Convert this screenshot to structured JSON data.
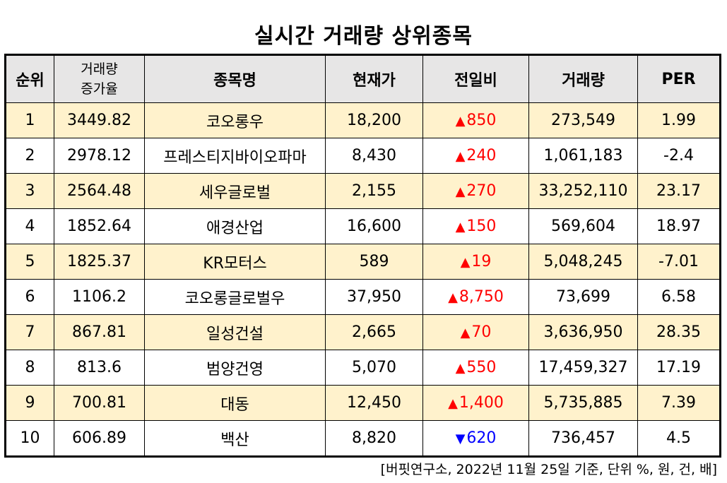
{
  "title": "실시간 거래량 상위종목",
  "headers": {
    "rank": "순위",
    "rate_line1": "거래량",
    "rate_line2": "증가율",
    "name": "종목명",
    "price": "현재가",
    "change": "전일비",
    "volume": "거래량",
    "per": "PER"
  },
  "rows": [
    {
      "rank": "1",
      "rate": "3449.82",
      "name": "코오롱우",
      "price": "18,200",
      "dir": "up",
      "dir_icon": "▲",
      "change": "850",
      "volume": "273,549",
      "per": "1.99"
    },
    {
      "rank": "2",
      "rate": "2978.12",
      "name": "프레스티지바이오파마",
      "price": "8,430",
      "dir": "up",
      "dir_icon": "▲",
      "change": "240",
      "volume": "1,061,183",
      "per": "-2.4"
    },
    {
      "rank": "3",
      "rate": "2564.48",
      "name": "세우글로벌",
      "price": "2,155",
      "dir": "up",
      "dir_icon": "▲",
      "change": "270",
      "volume": "33,252,110",
      "per": "23.17"
    },
    {
      "rank": "4",
      "rate": "1852.64",
      "name": "애경산업",
      "price": "16,600",
      "dir": "up",
      "dir_icon": "▲",
      "change": "150",
      "volume": "569,604",
      "per": "18.97"
    },
    {
      "rank": "5",
      "rate": "1825.37",
      "name": "KR모터스",
      "price": "589",
      "dir": "up",
      "dir_icon": "▲",
      "change": "19",
      "volume": "5,048,245",
      "per": "-7.01"
    },
    {
      "rank": "6",
      "rate": "1106.2",
      "name": "코오롱글로벌우",
      "price": "37,950",
      "dir": "up",
      "dir_icon": "▲",
      "change": "8,750",
      "volume": "73,699",
      "per": "6.58"
    },
    {
      "rank": "7",
      "rate": "867.81",
      "name": "일성건설",
      "price": "2,665",
      "dir": "up",
      "dir_icon": "▲",
      "change": "70",
      "volume": "3,636,950",
      "per": "28.35"
    },
    {
      "rank": "8",
      "rate": "813.6",
      "name": "범양건영",
      "price": "5,070",
      "dir": "up",
      "dir_icon": "▲",
      "change": "550",
      "volume": "17,459,327",
      "per": "17.19"
    },
    {
      "rank": "9",
      "rate": "700.81",
      "name": "대동",
      "price": "12,450",
      "dir": "up",
      "dir_icon": "▲",
      "change": "1,400",
      "volume": "5,735,885",
      "per": "7.39"
    },
    {
      "rank": "10",
      "rate": "606.89",
      "name": "백산",
      "price": "8,820",
      "dir": "down",
      "dir_icon": "▼",
      "change": "620",
      "volume": "736,457",
      "per": "4.5"
    }
  ],
  "colors": {
    "header_bg": "#e7e6e6",
    "odd_row_bg": "#fff2cc",
    "even_row_bg": "#ffffff",
    "up": "#ff0000",
    "down": "#0000ff"
  },
  "footnote": "[버핏연구소, 2022년 11월 25일 기준, 단위 %, 원, 건, 배]"
}
